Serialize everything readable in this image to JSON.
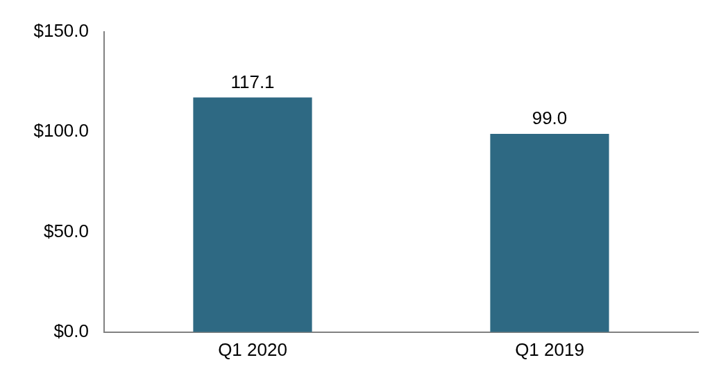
{
  "chart_data": {
    "type": "bar",
    "categories": [
      "Q1 2020",
      "Q1 2019"
    ],
    "values": [
      117.1,
      99.0
    ],
    "color": "#2e6983",
    "ylim": [
      0,
      150
    ],
    "yticks": [
      {
        "value": 0,
        "label": "$0.0"
      },
      {
        "value": 50,
        "label": "$50.0"
      },
      {
        "value": 100,
        "label": "$100.0"
      },
      {
        "value": 150,
        "label": "$150.0"
      }
    ],
    "value_labels": [
      "117.1",
      "99.0"
    ],
    "grid": false,
    "legend": false
  }
}
